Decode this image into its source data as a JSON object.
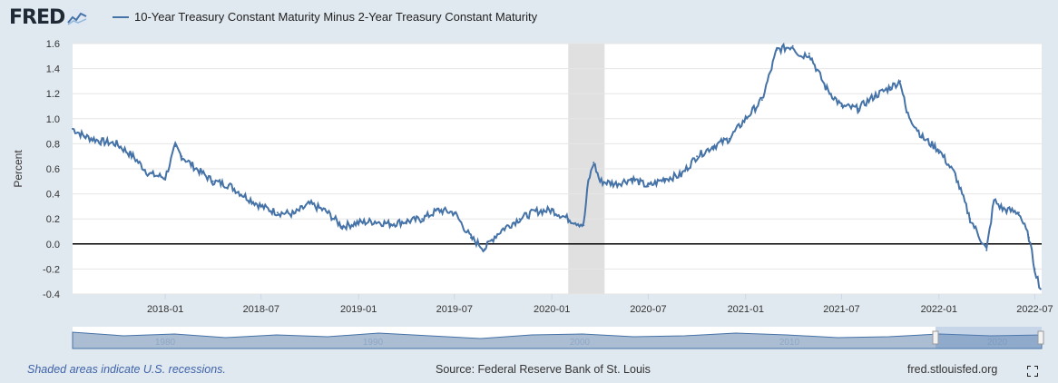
{
  "header": {
    "logo": "FRED",
    "logo_icon": "fred-chart-icon",
    "series_title": "10-Year Treasury Constant Maturity Minus 2-Year Treasury Constant Maturity"
  },
  "footer": {
    "recession_note": "Shaded areas indicate U.S. recessions.",
    "source": "Source: Federal Reserve Bank of St. Louis",
    "site": "fred.stlouisfed.org"
  },
  "colors": {
    "series": "#4572a7",
    "recession": "#e0e0e0",
    "background": "#e1e9f0",
    "zero_line": "#000000"
  },
  "chart_data": {
    "type": "line",
    "title": "10-Year Treasury Constant Maturity Minus 2-Year Treasury Constant Maturity",
    "xlabel": "",
    "ylabel": "Percent",
    "ylim": [
      -0.4,
      1.6
    ],
    "yticks": [
      -0.4,
      -0.2,
      0.0,
      0.2,
      0.4,
      0.6,
      0.8,
      1.0,
      1.2,
      1.4,
      1.6
    ],
    "xlim": [
      "2017-07",
      "2022-07"
    ],
    "xticks": [
      "2018-01",
      "2018-07",
      "2019-01",
      "2019-07",
      "2020-01",
      "2020-07",
      "2021-01",
      "2021-07",
      "2022-01",
      "2022-07"
    ],
    "grid": true,
    "recessions": [
      {
        "start": "2020-02",
        "end": "2020-04"
      }
    ],
    "series": [
      {
        "name": "10-Year Treasury Constant Maturity Minus 2-Year Treasury Constant Maturity",
        "x": [
          "2017-07-10",
          "2017-08-01",
          "2017-09-01",
          "2017-10-01",
          "2017-11-01",
          "2017-12-01",
          "2018-01-01",
          "2018-01-20",
          "2018-02-01",
          "2018-03-01",
          "2018-04-01",
          "2018-05-01",
          "2018-06-01",
          "2018-07-01",
          "2018-08-01",
          "2018-09-01",
          "2018-10-01",
          "2018-11-01",
          "2018-12-01",
          "2019-01-01",
          "2019-02-01",
          "2019-03-01",
          "2019-04-01",
          "2019-05-01",
          "2019-06-01",
          "2019-07-01",
          "2019-08-01",
          "2019-08-27",
          "2019-09-15",
          "2019-10-01",
          "2019-11-01",
          "2019-12-01",
          "2020-01-01",
          "2020-02-01",
          "2020-03-01",
          "2020-03-10",
          "2020-03-20",
          "2020-04-01",
          "2020-05-01",
          "2020-06-01",
          "2020-07-01",
          "2020-08-01",
          "2020-09-01",
          "2020-10-01",
          "2020-11-01",
          "2020-12-01",
          "2021-01-01",
          "2021-02-01",
          "2021-03-01",
          "2021-03-31",
          "2021-04-15",
          "2021-05-01",
          "2021-06-01",
          "2021-07-01",
          "2021-08-01",
          "2021-09-01",
          "2021-10-01",
          "2021-10-20",
          "2021-11-01",
          "2021-12-01",
          "2022-01-01",
          "2022-02-01",
          "2022-03-01",
          "2022-04-01",
          "2022-04-15",
          "2022-05-01",
          "2022-06-01",
          "2022-06-20",
          "2022-07-01",
          "2022-07-12"
        ],
        "values": [
          0.92,
          0.86,
          0.82,
          0.8,
          0.7,
          0.56,
          0.53,
          0.78,
          0.7,
          0.6,
          0.5,
          0.47,
          0.38,
          0.3,
          0.25,
          0.24,
          0.32,
          0.26,
          0.14,
          0.17,
          0.18,
          0.16,
          0.18,
          0.2,
          0.27,
          0.25,
          0.05,
          -0.04,
          0.06,
          0.12,
          0.2,
          0.26,
          0.27,
          0.2,
          0.15,
          0.5,
          0.65,
          0.5,
          0.48,
          0.52,
          0.46,
          0.52,
          0.55,
          0.7,
          0.78,
          0.84,
          1.0,
          1.15,
          1.55,
          1.58,
          1.5,
          1.52,
          1.25,
          1.1,
          1.08,
          1.18,
          1.25,
          1.3,
          1.05,
          0.85,
          0.75,
          0.55,
          0.2,
          -0.05,
          0.35,
          0.28,
          0.25,
          0.05,
          -0.2,
          -0.36
        ]
      }
    ],
    "navigator": {
      "labels": [
        "1980",
        "1990",
        "2000",
        "2010",
        "2020"
      ]
    }
  }
}
